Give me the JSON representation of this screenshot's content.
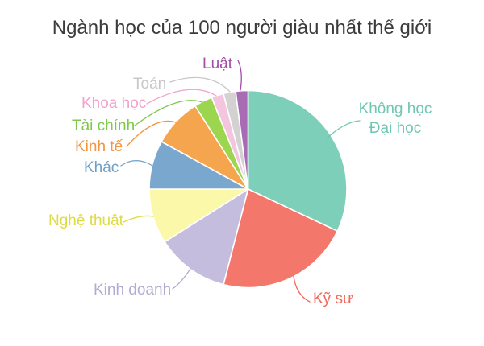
{
  "title": "Ngành học của 100 người giàu nhất thế giới",
  "chart_data": {
    "type": "pie",
    "title": "Ngành học của 100 người giàu nhất thế giới",
    "total": 100,
    "direction": "clockwise",
    "start_angle_deg": 0,
    "legend_position": "outside labels with leader lines",
    "slices": [
      {
        "label": "Không học Đại học",
        "label_lines": [
          "Không học",
          "Đại học"
        ],
        "value": 32,
        "color": "#7ecfba",
        "label_color": "#6fc7b2"
      },
      {
        "label": "Kỹ sư",
        "value": 22,
        "color": "#f3776b",
        "label_color": "#f3685c"
      },
      {
        "label": "Kinh doanh",
        "value": 12,
        "color": "#c5bddd",
        "label_color": "#b3abd1"
      },
      {
        "label": "Nghệ thuật",
        "value": 9,
        "color": "#fbf9a9",
        "label_color": "#dedb43"
      },
      {
        "label": "Khác",
        "value": 8,
        "color": "#79a7cd",
        "label_color": "#6d9fc8"
      },
      {
        "label": "Kinh tế",
        "value": 8,
        "color": "#f5a54d",
        "label_color": "#f09542"
      },
      {
        "label": "Tài chính",
        "value": 3,
        "color": "#9cd54e",
        "label_color": "#7cc94b"
      },
      {
        "label": "Khoa học",
        "value": 2,
        "color": "#f4c5de",
        "label_color": "#f2a2cc"
      },
      {
        "label": "Toán",
        "value": 2,
        "color": "#d3d1d2",
        "label_color": "#c8c6c8"
      },
      {
        "label": "Luật",
        "value": 2,
        "color": "#a96cb4",
        "label_color": "#a44ba8"
      }
    ]
  }
}
